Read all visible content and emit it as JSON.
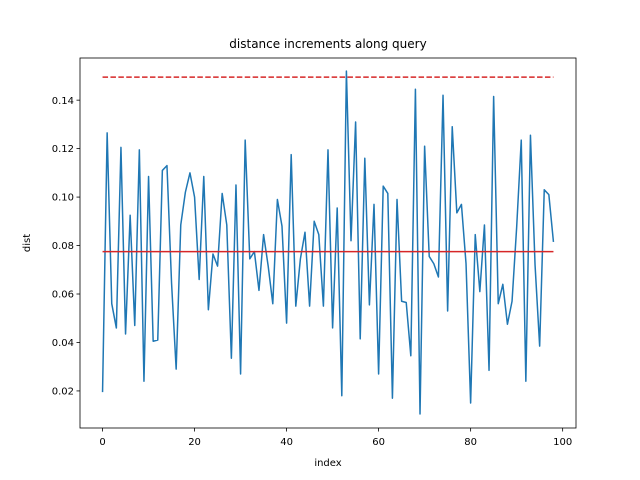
{
  "chart_data": {
    "type": "line",
    "title": "distance increments along query",
    "xlabel": "index",
    "ylabel": "dist",
    "xlim": [
      -4.9,
      102.9
    ],
    "ylim": [
      0.0047,
      0.1574
    ],
    "xticks": [
      0,
      20,
      40,
      60,
      80,
      100
    ],
    "xtick_labels": [
      "0",
      "20",
      "40",
      "60",
      "80",
      "100"
    ],
    "yticks": [
      0.02,
      0.04,
      0.06,
      0.08,
      0.1,
      0.12,
      0.14
    ],
    "ytick_labels": [
      "0.02",
      "0.04",
      "0.06",
      "0.08",
      "0.10",
      "0.12",
      "0.14"
    ],
    "grid": false,
    "series": [
      {
        "color": "#1f77b4",
        "style": "solid",
        "x": [
          0,
          1,
          2,
          3,
          4,
          5,
          6,
          7,
          8,
          9,
          10,
          11,
          12,
          13,
          14,
          15,
          16,
          17,
          18,
          19,
          20,
          21,
          22,
          23,
          24,
          25,
          26,
          27,
          28,
          29,
          30,
          31,
          32,
          33,
          34,
          35,
          36,
          37,
          38,
          39,
          40,
          41,
          42,
          43,
          44,
          45,
          46,
          47,
          48,
          49,
          50,
          51,
          52,
          53,
          54,
          55,
          56,
          57,
          58,
          59,
          60,
          61,
          62,
          63,
          64,
          65,
          66,
          67,
          68,
          69,
          70,
          71,
          72,
          73,
          74,
          75,
          76,
          77,
          78,
          79,
          80,
          81,
          82,
          83,
          84,
          85,
          86,
          87,
          88,
          89,
          90,
          91,
          92,
          93,
          94,
          95,
          96,
          97,
          98
        ],
        "y": [
          0.0195,
          0.1265,
          0.056,
          0.046,
          0.1205,
          0.0435,
          0.0925,
          0.047,
          0.1195,
          0.024,
          0.1085,
          0.0405,
          0.041,
          0.111,
          0.113,
          0.0645,
          0.029,
          0.0885,
          0.102,
          0.11,
          0.1,
          0.066,
          0.1085,
          0.0535,
          0.0765,
          0.0715,
          0.1015,
          0.0885,
          0.0335,
          0.105,
          0.027,
          0.1235,
          0.0745,
          0.0775,
          0.0615,
          0.0845,
          0.0715,
          0.056,
          0.099,
          0.088,
          0.048,
          0.1175,
          0.055,
          0.0745,
          0.0855,
          0.055,
          0.09,
          0.0845,
          0.055,
          0.1195,
          0.046,
          0.0955,
          0.018,
          0.152,
          0.082,
          0.131,
          0.0415,
          0.116,
          0.0555,
          0.097,
          0.027,
          0.1045,
          0.1015,
          0.017,
          0.099,
          0.057,
          0.0565,
          0.0345,
          0.1445,
          0.0105,
          0.121,
          0.0755,
          0.0725,
          0.067,
          0.142,
          0.053,
          0.129,
          0.0935,
          0.097,
          0.0725,
          0.015,
          0.0845,
          0.061,
          0.0885,
          0.0285,
          0.1415,
          0.056,
          0.064,
          0.0475,
          0.057,
          0.0875,
          0.1235,
          0.024,
          0.1255,
          0.072,
          0.0385,
          0.103,
          0.101,
          0.0815
        ]
      },
      {
        "color": "#d62728",
        "style": "solid",
        "x": [
          0,
          98
        ],
        "y": [
          0.0775,
          0.0775
        ]
      },
      {
        "color": "#d62728",
        "style": "dashed",
        "x": [
          0,
          98
        ],
        "y": [
          0.1495,
          0.1495
        ]
      }
    ]
  }
}
